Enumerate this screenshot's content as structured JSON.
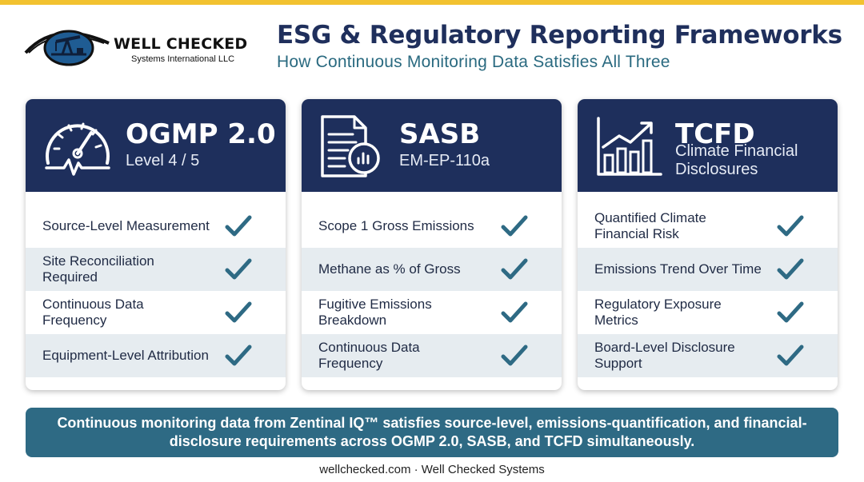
{
  "brand": {
    "name": "WELL CHECKED",
    "subname": "Systems International LLC",
    "accent_color": "#f2c230",
    "navy_color": "#1e2f5c",
    "teal_color": "#2e6a84"
  },
  "header": {
    "title": "ESG & Regulatory Reporting Frameworks",
    "subtitle": "How Continuous Monitoring Data Satisfies All Three"
  },
  "cards": [
    {
      "name": "OGMP 2.0",
      "sub": "Level 4 / 5",
      "icon": "gauge-icon",
      "rows": [
        {
          "label": "Source-Level Measurement",
          "checked": true
        },
        {
          "label": "Site Reconciliation Required",
          "checked": true
        },
        {
          "label": "Continuous Data Frequency",
          "checked": true
        },
        {
          "label": "Equipment-Level Attribution",
          "checked": true
        }
      ]
    },
    {
      "name": "SASB",
      "sub": "EM-EP-110a",
      "icon": "document-chart-icon",
      "rows": [
        {
          "label": "Scope 1 Gross Emissions",
          "checked": true
        },
        {
          "label": "Methane as % of Gross",
          "checked": true
        },
        {
          "label": "Fugitive Emissions Breakdown",
          "checked": true
        },
        {
          "label": "Continuous Data Frequency",
          "checked": true
        }
      ]
    },
    {
      "name": "TCFD",
      "sub": "Climate Financial Disclosures",
      "icon": "bar-chart-trend-icon",
      "rows": [
        {
          "label": "Quantified Climate Financial Risk",
          "checked": true
        },
        {
          "label": "Emissions Trend Over Time",
          "checked": true
        },
        {
          "label": "Regulatory Exposure Metrics",
          "checked": true
        },
        {
          "label": "Board-Level Disclosure Support",
          "checked": true
        }
      ]
    }
  ],
  "banner": {
    "text": "Continuous monitoring data from Zentinal IQ™ satisfies source-level, emissions-quantification, and financial-disclosure requirements across OGMP 2.0, SASB, and TCFD simultaneously."
  },
  "footer": {
    "text": "wellchecked.com · Well Checked Systems"
  }
}
